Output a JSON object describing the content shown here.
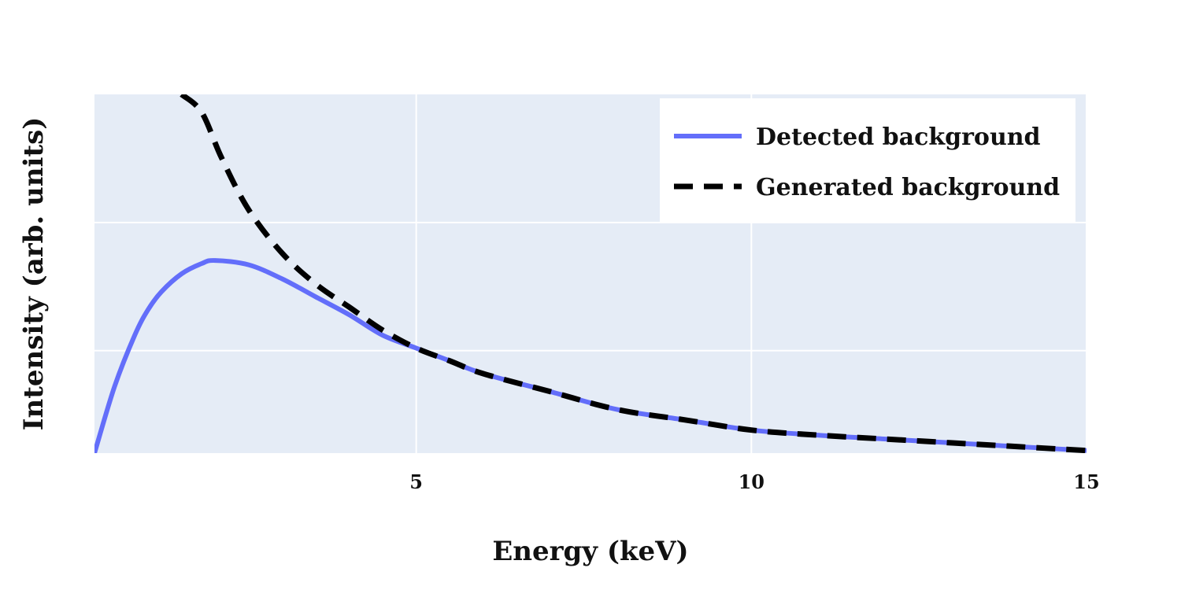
{
  "chart_data": {
    "type": "line",
    "xlabel": "Energy (keV)",
    "ylabel": "Intensity (arb. units)",
    "xlim": [
      0.2,
      15
    ],
    "ylim": [
      0,
      1.4
    ],
    "xticks": [
      5,
      10,
      15
    ],
    "xtick_labels": [
      "5",
      "10",
      "15"
    ],
    "yticks": [
      0.4,
      0.9
    ],
    "ytick_labels_visible": false,
    "grid": true,
    "background_color": "#E5ECF6",
    "grid_color": "#ffffff",
    "legend_position": "top-right",
    "series": [
      {
        "name": "Detected background",
        "color": "#636EFA",
        "dash": "solid",
        "x": [
          0.2,
          0.5,
          0.8,
          1.0,
          1.2,
          1.5,
          1.8,
          2.0,
          2.5,
          3.0,
          3.5,
          4.0,
          4.5,
          5.0,
          5.5,
          6.0,
          7.0,
          8.0,
          9.0,
          10.0,
          11.0,
          12.0,
          13.0,
          14.0,
          15.0
        ],
        "y": [
          0.0,
          0.26,
          0.46,
          0.56,
          0.63,
          0.7,
          0.74,
          0.752,
          0.735,
          0.68,
          0.61,
          0.54,
          0.46,
          0.41,
          0.36,
          0.31,
          0.24,
          0.17,
          0.13,
          0.09,
          0.07,
          0.055,
          0.04,
          0.025,
          0.01
        ]
      },
      {
        "name": "Generated background",
        "color": "#000000",
        "dash": "dashed",
        "x": [
          1.5,
          1.8,
          2.1,
          2.5,
          3.0,
          3.5,
          4.0,
          4.5,
          5.0,
          5.5,
          6.0,
          7.0,
          8.0,
          9.0,
          10.0,
          11.0,
          12.0,
          13.0,
          14.0,
          15.0
        ],
        "y": [
          1.4,
          1.33,
          1.15,
          0.95,
          0.78,
          0.66,
          0.57,
          0.48,
          0.41,
          0.36,
          0.31,
          0.24,
          0.17,
          0.13,
          0.09,
          0.07,
          0.055,
          0.04,
          0.025,
          0.01
        ]
      }
    ]
  }
}
